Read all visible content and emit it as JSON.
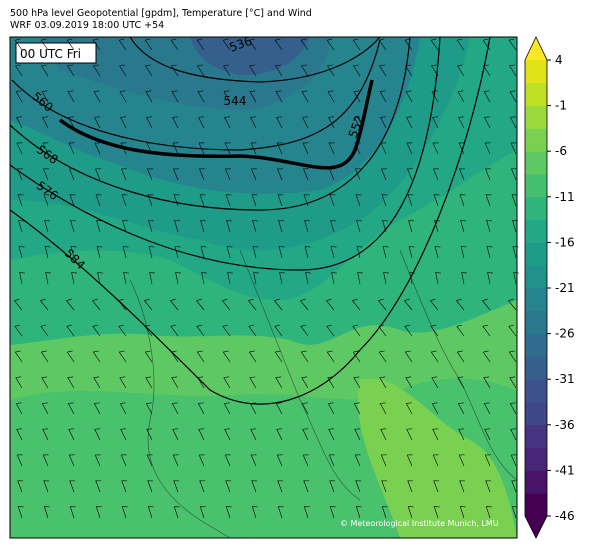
{
  "header": {
    "title": "500 hPa level Geopotential [gpdm], Temperature [°C] and Wind",
    "subtitle": "WRF 03.09.2019 18:00 UTC +54"
  },
  "map": {
    "time_label": "00 UTC Fri",
    "contour_labels": [
      "536",
      "544",
      "552",
      "560",
      "568",
      "576",
      "584"
    ],
    "credit": "© Meteorological Institute Munich, LMU"
  },
  "colorbar": {
    "lim": [
      -46,
      4
    ],
    "ticks": [
      4,
      -1,
      -6,
      -11,
      -16,
      -21,
      -26,
      -31,
      -36,
      -41,
      -46
    ],
    "colors": [
      "#440154",
      "#481467",
      "#482576",
      "#463480",
      "#3f4788",
      "#3b528b",
      "#355f8d",
      "#2f6c8e",
      "#2a788e",
      "#25848e",
      "#21918c",
      "#1e9c89",
      "#22a884",
      "#2fb47c",
      "#44bf70",
      "#5ec962",
      "#7ad151",
      "#9bd93c",
      "#bddf26",
      "#dfe318"
    ],
    "extend_colors": [
      "#440154",
      "#fde725"
    ]
  }
}
